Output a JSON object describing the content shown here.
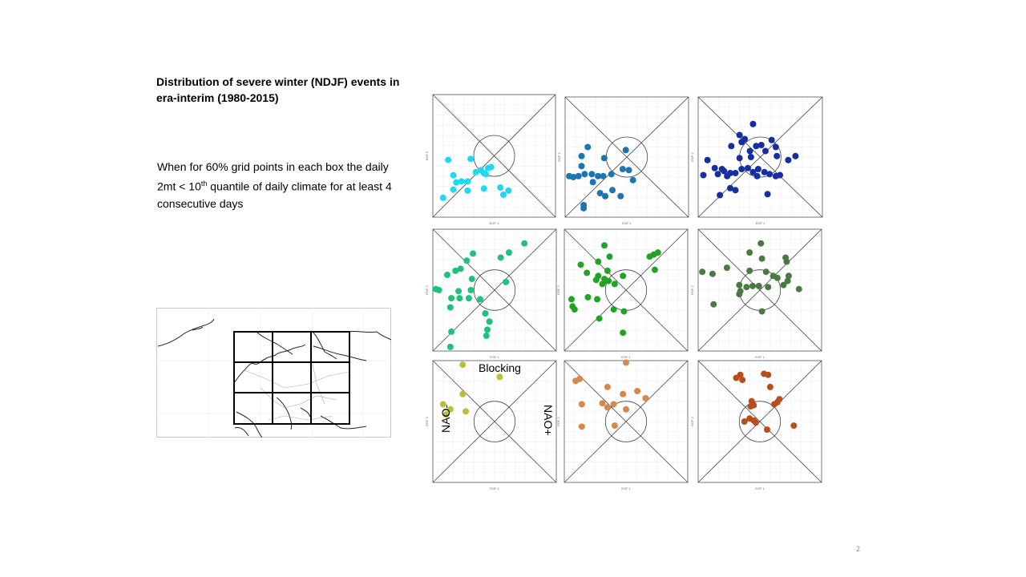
{
  "slide": {
    "title": "Distribution of severe winter (NDJF) events in era-interim (1980-2015)",
    "desc_part1": "When for 60% grid points in each box the daily 2mt < 10",
    "desc_sup": "th",
    "desc_part2": " quantile of daily climate for at least 4 consecutive days",
    "page_number": "2"
  },
  "annotations": {
    "blocking": "Blocking",
    "nao_minus": "NAO-",
    "nao_plus": "NAO+"
  },
  "chart_data": [
    {
      "type": "scatter",
      "color": "#22d8f0",
      "xlim": [
        -3,
        3
      ],
      "ylim": [
        -3,
        3
      ],
      "xlabel": "EOF 1",
      "ylabel": "EOF 2",
      "points": [
        [
          -2.25,
          -0.2
        ],
        [
          -1.15,
          -0.15
        ],
        [
          -2.0,
          -0.95
        ],
        [
          -1.85,
          -1.3
        ],
        [
          -1.6,
          -1.25
        ],
        [
          -1.3,
          -1.25
        ],
        [
          -0.9,
          -0.8
        ],
        [
          -0.65,
          -0.7
        ],
        [
          -0.5,
          -0.85
        ],
        [
          -0.3,
          -0.6
        ],
        [
          -0.15,
          -0.55
        ],
        [
          -0.4,
          -0.9
        ],
        [
          -2.0,
          -1.65
        ],
        [
          -1.3,
          -1.7
        ],
        [
          -2.5,
          -2.05
        ],
        [
          -0.5,
          -1.6
        ],
        [
          0.3,
          -1.55
        ],
        [
          0.7,
          -1.7
        ],
        [
          0.45,
          -1.9
        ]
      ]
    },
    {
      "type": "scatter",
      "color": "#1f75b0",
      "xlim": [
        -3,
        3
      ],
      "ylim": [
        -3,
        3
      ],
      "xlabel": "EOF 1",
      "ylabel": "EOF 2",
      "points": [
        [
          -1.9,
          0.5
        ],
        [
          -2.2,
          0.05
        ],
        [
          -1.1,
          -0.05
        ],
        [
          -0.05,
          0.35
        ],
        [
          -2.2,
          -0.45
        ],
        [
          -2.8,
          -0.95
        ],
        [
          -2.6,
          -1.0
        ],
        [
          -2.35,
          -0.95
        ],
        [
          -2.05,
          -0.85
        ],
        [
          -1.7,
          -0.85
        ],
        [
          -1.4,
          -0.95
        ],
        [
          -1.15,
          -0.95
        ],
        [
          -0.75,
          -0.85
        ],
        [
          -0.2,
          -0.6
        ],
        [
          0.1,
          -0.65
        ],
        [
          0.3,
          -1.15
        ],
        [
          -1.65,
          -1.25
        ],
        [
          -1.3,
          -1.8
        ],
        [
          -1.05,
          -1.95
        ],
        [
          -0.7,
          -1.65
        ],
        [
          -0.3,
          -1.95
        ],
        [
          -2.1,
          -2.4
        ],
        [
          -2.1,
          -2.55
        ]
      ]
    },
    {
      "type": "scatter",
      "color": "#152f9e",
      "xlim": [
        -3,
        3
      ],
      "ylim": [
        -3,
        3
      ],
      "xlabel": "EOF 1",
      "ylabel": "EOF 2",
      "points": [
        [
          -0.35,
          1.65
        ],
        [
          -1.0,
          1.1
        ],
        [
          -0.75,
          0.9
        ],
        [
          -0.9,
          0.75
        ],
        [
          -1.4,
          0.55
        ],
        [
          -0.2,
          0.55
        ],
        [
          0.05,
          0.6
        ],
        [
          0.55,
          0.85
        ],
        [
          0.75,
          0.5
        ],
        [
          -0.5,
          0.3
        ],
        [
          0.25,
          0.3
        ],
        [
          -1.0,
          -0.05
        ],
        [
          -0.45,
          0.0
        ],
        [
          0.8,
          0.05
        ],
        [
          1.35,
          -0.15
        ],
        [
          1.7,
          0.05
        ],
        [
          -2.55,
          -0.15
        ],
        [
          -2.2,
          -0.55
        ],
        [
          -1.75,
          -0.7
        ],
        [
          -1.45,
          -0.8
        ],
        [
          -1.2,
          -0.8
        ],
        [
          -0.9,
          -0.6
        ],
        [
          -0.6,
          -0.55
        ],
        [
          -0.35,
          -0.75
        ],
        [
          -0.1,
          -0.6
        ],
        [
          0.2,
          -0.75
        ],
        [
          0.45,
          -0.85
        ],
        [
          0.75,
          -0.95
        ],
        [
          0.95,
          -0.9
        ],
        [
          -2.75,
          -0.9
        ],
        [
          -2.05,
          -0.85
        ],
        [
          -1.6,
          -0.95
        ],
        [
          -1.85,
          -0.6
        ],
        [
          -0.15,
          -0.95
        ],
        [
          -1.45,
          -1.55
        ],
        [
          -1.2,
          -1.65
        ],
        [
          -1.95,
          -1.9
        ],
        [
          0.35,
          -1.85
        ]
      ]
    },
    {
      "type": "scatter",
      "color": "#1ec27a",
      "xlim": [
        -3,
        3
      ],
      "ylim": [
        -3,
        3
      ],
      "xlabel": "EOF 1",
      "ylabel": "EOF 2",
      "points": [
        [
          -1.05,
          1.8
        ],
        [
          -1.35,
          1.45
        ],
        [
          0.3,
          1.6
        ],
        [
          0.7,
          1.85
        ],
        [
          1.45,
          2.3
        ],
        [
          -1.65,
          1.05
        ],
        [
          -1.9,
          0.95
        ],
        [
          -2.3,
          0.75
        ],
        [
          -1.1,
          0.55
        ],
        [
          0.55,
          0.4
        ],
        [
          -2.85,
          0.05
        ],
        [
          -2.7,
          0.0
        ],
        [
          -1.75,
          -0.05
        ],
        [
          -1.15,
          0.0
        ],
        [
          -2.1,
          -0.4
        ],
        [
          -1.7,
          -0.4
        ],
        [
          -1.25,
          -0.4
        ],
        [
          -0.7,
          -0.45
        ],
        [
          -2.15,
          -0.85
        ],
        [
          -0.45,
          -1.15
        ],
        [
          -0.25,
          -1.55
        ],
        [
          -0.35,
          -1.95
        ],
        [
          -2.1,
          -2.05
        ],
        [
          -0.4,
          -2.25
        ],
        [
          -2.15,
          -2.8
        ]
      ]
    },
    {
      "type": "scatter",
      "color": "#22a326",
      "xlim": [
        -3,
        3
      ],
      "ylim": [
        -3,
        3
      ],
      "xlabel": "EOF 1",
      "ylabel": "EOF 2",
      "points": [
        [
          -1.05,
          2.2
        ],
        [
          -0.8,
          1.65
        ],
        [
          -1.35,
          1.4
        ],
        [
          -2.2,
          1.25
        ],
        [
          1.15,
          1.65
        ],
        [
          1.35,
          1.75
        ],
        [
          1.55,
          1.85
        ],
        [
          1.4,
          1.0
        ],
        [
          -0.9,
          0.95
        ],
        [
          -0.15,
          0.7
        ],
        [
          -1.9,
          0.85
        ],
        [
          -1.35,
          0.7
        ],
        [
          -1.05,
          0.55
        ],
        [
          -1.45,
          0.5
        ],
        [
          -1.0,
          0.45
        ],
        [
          -0.85,
          0.45
        ],
        [
          -1.15,
          0.3
        ],
        [
          -0.55,
          0.3
        ],
        [
          -2.65,
          -0.45
        ],
        [
          -1.85,
          -0.35
        ],
        [
          -1.4,
          -0.45
        ],
        [
          -2.6,
          -0.8
        ],
        [
          -2.5,
          -0.95
        ],
        [
          -0.6,
          -0.95
        ],
        [
          -0.1,
          -1.05
        ],
        [
          -1.3,
          -1.4
        ],
        [
          -0.15,
          -2.1
        ]
      ]
    },
    {
      "type": "scatter",
      "color": "#4a7a42",
      "xlim": [
        -3,
        3
      ],
      "ylim": [
        -3,
        3
      ],
      "xlabel": "EOF 1",
      "ylabel": "EOF 2",
      "points": [
        [
          0.05,
          2.3
        ],
        [
          -0.5,
          1.85
        ],
        [
          0.1,
          1.55
        ],
        [
          1.25,
          1.6
        ],
        [
          1.3,
          1.4
        ],
        [
          -1.6,
          1.1
        ],
        [
          -2.8,
          0.9
        ],
        [
          -2.3,
          0.8
        ],
        [
          -0.5,
          0.95
        ],
        [
          0.3,
          0.9
        ],
        [
          0.65,
          0.7
        ],
        [
          0.85,
          0.6
        ],
        [
          1.4,
          0.7
        ],
        [
          1.35,
          0.45
        ],
        [
          1.15,
          0.25
        ],
        [
          -1.0,
          0.25
        ],
        [
          -0.65,
          0.15
        ],
        [
          -0.35,
          0.2
        ],
        [
          -0.05,
          0.2
        ],
        [
          0.4,
          0.15
        ],
        [
          1.9,
          0.05
        ],
        [
          -0.95,
          -0.05
        ],
        [
          -1.0,
          -0.2
        ],
        [
          -2.25,
          -0.7
        ],
        [
          0.1,
          -1.05
        ]
      ]
    },
    {
      "type": "scatter",
      "color": "#b9bf3a",
      "xlim": [
        -3,
        3
      ],
      "ylim": [
        -3,
        3
      ],
      "xlabel": "EOF 1",
      "ylabel": "EOF 2",
      "points": [
        [
          -1.55,
          2.8
        ],
        [
          0.25,
          2.2
        ],
        [
          -1.55,
          1.35
        ],
        [
          -2.5,
          0.85
        ],
        [
          -2.15,
          0.6
        ],
        [
          -1.4,
          0.5
        ],
        [
          -2.35,
          0.35
        ]
      ]
    },
    {
      "type": "scatter",
      "color": "#d4884a",
      "xlim": [
        -3,
        3
      ],
      "ylim": [
        -3,
        3
      ],
      "xlabel": "EOF 1",
      "ylabel": "EOF 2",
      "points": [
        [
          0.0,
          2.9
        ],
        [
          -2.45,
          2.0
        ],
        [
          -2.25,
          2.1
        ],
        [
          -0.9,
          1.7
        ],
        [
          0.55,
          1.5
        ],
        [
          0.95,
          1.15
        ],
        [
          -0.15,
          1.35
        ],
        [
          -2.15,
          0.85
        ],
        [
          -1.15,
          0.9
        ],
        [
          -0.9,
          0.7
        ],
        [
          -0.6,
          0.85
        ],
        [
          0.0,
          0.6
        ],
        [
          -2.15,
          -0.25
        ],
        [
          -0.55,
          -0.2
        ]
      ]
    },
    {
      "type": "scatter",
      "color": "#b84e1d",
      "xlim": [
        -3,
        3
      ],
      "ylim": [
        -3,
        3
      ],
      "xlabel": "EOF 1",
      "ylabel": "EOF 2",
      "points": [
        [
          -0.95,
          2.3
        ],
        [
          -1.15,
          2.15
        ],
        [
          -0.85,
          2.05
        ],
        [
          0.2,
          2.35
        ],
        [
          0.4,
          2.3
        ],
        [
          0.5,
          1.7
        ],
        [
          -0.4,
          1.0
        ],
        [
          0.95,
          1.1
        ],
        [
          0.85,
          0.95
        ],
        [
          0.7,
          0.85
        ],
        [
          -0.3,
          0.8
        ],
        [
          -0.45,
          0.75
        ],
        [
          -0.5,
          0.15
        ],
        [
          -0.3,
          0.05
        ],
        [
          -0.2,
          -0.05
        ],
        [
          -0.75,
          0.0
        ],
        [
          0.35,
          -0.4
        ],
        [
          1.65,
          -0.2
        ]
      ]
    }
  ]
}
